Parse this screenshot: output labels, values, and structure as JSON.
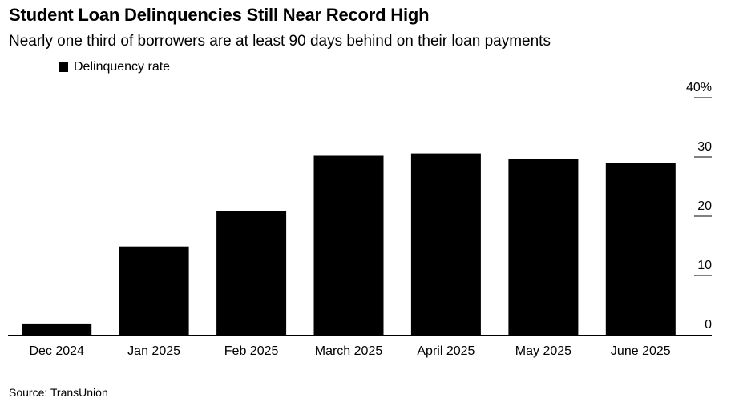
{
  "header": {
    "title": "Student Loan Delinquencies Still Near Record High",
    "subtitle": "Nearly one third of borrowers are at least 90 days behind on their loan payments"
  },
  "footer": {
    "source": "Source: TransUnion"
  },
  "colors": {
    "bar": "#000000",
    "axis": "#000000",
    "background": "#ffffff"
  },
  "chart_data": {
    "type": "bar",
    "title": "Student Loan Delinquencies Still Near Record High",
    "subtitle": "Nearly one third of borrowers are at least 90 days behind on their loan payments",
    "categories": [
      "Dec 2024",
      "Jan 2025",
      "Feb 2025",
      "March 2025",
      "April 2025",
      "May 2025",
      "June 2025"
    ],
    "series": [
      {
        "name": "Delinquency rate",
        "values": [
          1.9,
          14.9,
          20.9,
          30.2,
          30.6,
          29.6,
          29.0
        ],
        "color": "#000000"
      }
    ],
    "ylim": [
      0,
      40
    ],
    "yticks": [
      0,
      10,
      20,
      30,
      40
    ],
    "ytick_labels": [
      "0",
      "10",
      "20",
      "30",
      "40%"
    ],
    "y_axis_position": "right",
    "grid": false,
    "legend": "top-left"
  }
}
